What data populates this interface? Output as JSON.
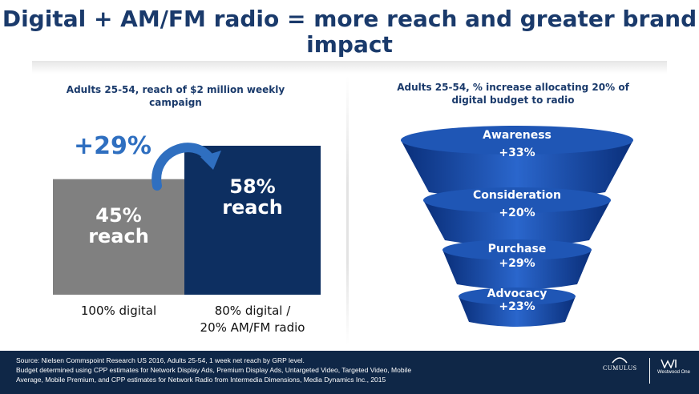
{
  "title": "Digital + AM/FM radio = more reach and greater brand impact",
  "left_subtitle": "Adults 25-54, reach of $2 million weekly campaign",
  "right_subtitle": "Adults 25-54, % increase allocating 20% of digital budget to radio",
  "increase_label": "+29%",
  "chart_data": [
    {
      "type": "bar",
      "title": "Adults 25-54, reach of $2 million weekly campaign",
      "categories": [
        "100% digital",
        "80% digital / 20% AM/FM radio"
      ],
      "values": [
        45,
        58
      ],
      "value_labels": [
        "45%",
        "58%"
      ],
      "bar_text": [
        "reach",
        "reach"
      ],
      "colors": [
        "#808080",
        "#0d2f61"
      ],
      "annotation": "+29%",
      "ylim": [
        0,
        70
      ]
    },
    {
      "type": "bar",
      "title": "Adults 25-54, % increase allocating 20% of digital budget to radio",
      "categories": [
        "Awareness",
        "Consideration",
        "Purchase",
        "Advocacy"
      ],
      "values": [
        33,
        20,
        29,
        23
      ],
      "value_labels": [
        "+33%",
        "+20%",
        "+29%",
        "+23%"
      ],
      "shape": "funnel",
      "color": "#1f56b5"
    }
  ],
  "footer": {
    "source_lines": [
      "Source: Nielsen Commspoint Research US 2016, Adults 25-54, 1 week net reach by GRP level.",
      "Budget determined using CPP estimates for Network Display Ads, Premium Display Ads, Untargeted Video, Targeted Video, Mobile",
      "Average, Mobile Premium, and CPP estimates for Network Radio from Intermedia Dimensions, Media Dynamics Inc., 2015"
    ],
    "logo_cumulus": "CUMULUS",
    "logo_westwood": "Westwood One"
  }
}
